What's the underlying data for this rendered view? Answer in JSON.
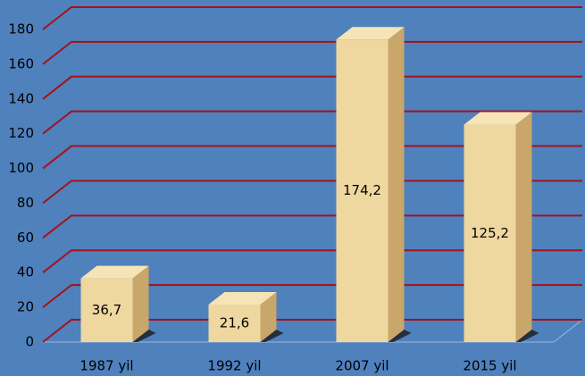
{
  "chart_data": {
    "type": "bar",
    "categories": [
      "1987 yil",
      "1992 yil",
      "2007 yil",
      "2015 yil"
    ],
    "values": [
      36.7,
      21.6,
      174.2,
      125.2
    ],
    "value_labels": [
      "36,7",
      "21,6",
      "174,2",
      "125,2"
    ],
    "color": "#efd7a0",
    "ylim": [
      0,
      180
    ],
    "yticks": [
      0,
      20,
      40,
      60,
      80,
      100,
      120,
      140,
      160,
      180
    ],
    "grid": true
  }
}
